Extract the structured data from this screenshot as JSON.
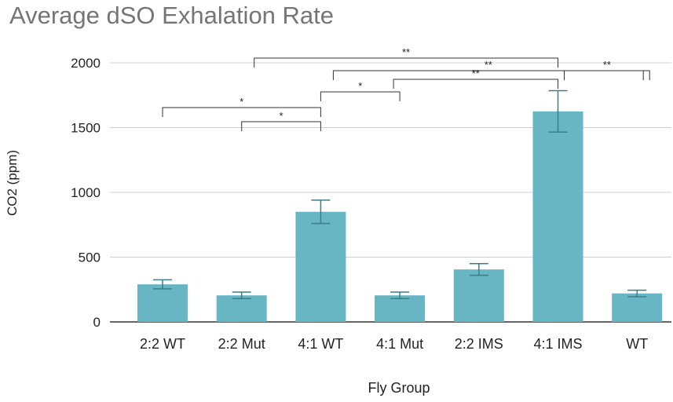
{
  "chart_data": {
    "type": "bar",
    "title": "Average dSO Exhalation Rate",
    "xlabel": "Fly Group",
    "ylabel": "CO2 (ppm)",
    "ylim": [
      0,
      2000
    ],
    "yticks": [
      0,
      500,
      1000,
      1500,
      2000
    ],
    "grid": true,
    "categories": [
      "2:2 WT",
      "2:2 Mut",
      "4:1 WT",
      "4:1 Mut",
      "2:2 IMS",
      "4:1 IMS",
      "WT"
    ],
    "series": [
      {
        "values": [
          290,
          205,
          850,
          205,
          405,
          1625,
          220
        ],
        "error": [
          35,
          25,
          90,
          25,
          45,
          160,
          25
        ]
      }
    ],
    "colors": {
      "bar": "#68b5c3",
      "error": "#3c7f8a",
      "grid": "#cfcfcf",
      "bracket": "#333333"
    },
    "significance": [
      {
        "from": "2:2 WT",
        "to": "4:1 WT",
        "label": "*"
      },
      {
        "from": "2:2 Mut",
        "to": "4:1 WT",
        "label": "*"
      },
      {
        "from": "4:1 WT",
        "to": "4:1 Mut",
        "label": "*"
      },
      {
        "from": "2:2 Mut",
        "to": "4:1 IMS",
        "label": "**"
      },
      {
        "from": "4:1 WT",
        "to": "WT",
        "label": "**"
      },
      {
        "from": "4:1 Mut",
        "to": "4:1 IMS",
        "label": "**"
      },
      {
        "from": "4:1 IMS",
        "to": "WT",
        "label": "**"
      }
    ]
  }
}
